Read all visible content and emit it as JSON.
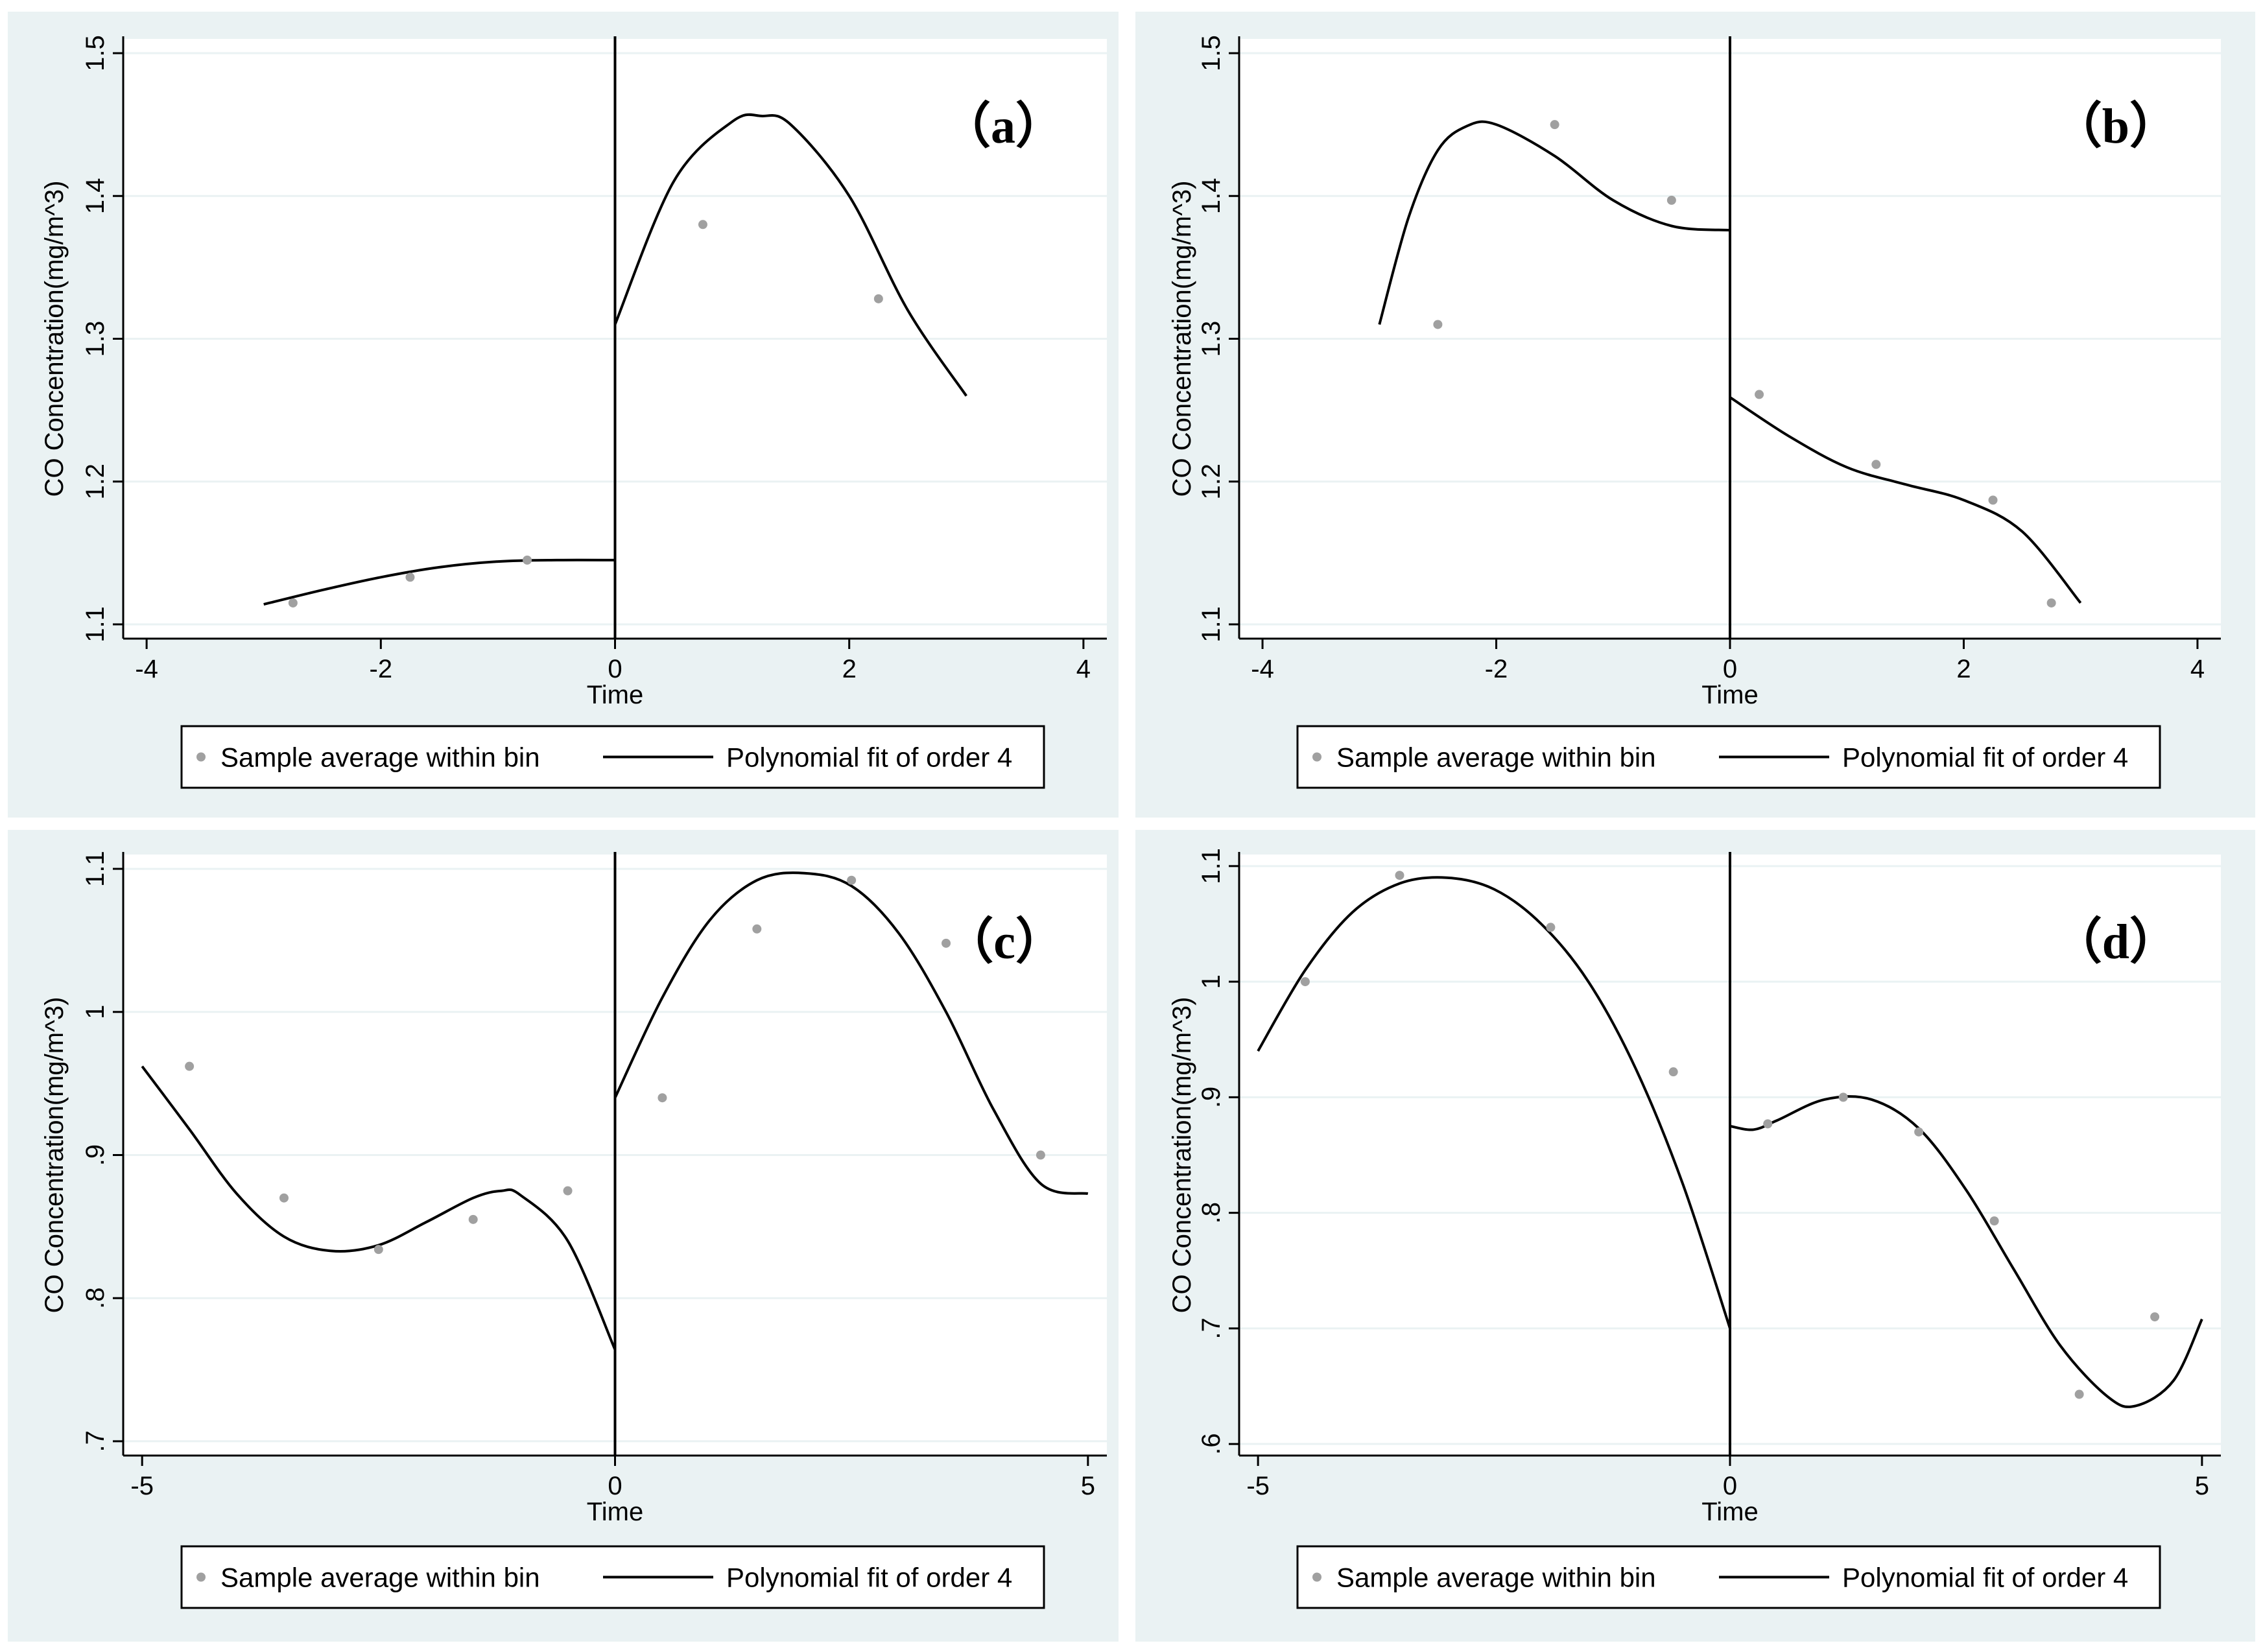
{
  "chart_data": [
    {
      "type": "scatter",
      "panel_label": "（a）",
      "xlabel": "Time",
      "ylabel": "CO Concentration(mg/m^3)",
      "xlim": [
        -4.2,
        4.2
      ],
      "ylim": [
        1.09,
        1.51
      ],
      "xticks": [
        -4,
        -2,
        0,
        2,
        4
      ],
      "xtick_labels": [
        "-4",
        "-2",
        "0",
        "2",
        "4"
      ],
      "yticks": [
        1.1,
        1.2,
        1.3,
        1.4,
        1.5
      ],
      "ytick_labels": [
        "1.1",
        "1.2",
        "1.3",
        "1.4",
        "1.5"
      ],
      "cutoff": 0,
      "points": {
        "x": [
          -2.75,
          -1.75,
          -0.75,
          0.75,
          2.25
        ],
        "y": [
          1.115,
          1.133,
          1.145,
          1.38,
          1.328
        ]
      },
      "fit_left": {
        "x": [
          -3,
          -2.5,
          -2,
          -1.5,
          -1,
          -0.5,
          0
        ],
        "y": [
          1.114,
          1.124,
          1.133,
          1.14,
          1.144,
          1.145,
          1.145
        ]
      },
      "fit_right": {
        "x": [
          0,
          0.5,
          1,
          1.25,
          1.5,
          2,
          2.5,
          3
        ],
        "y": [
          1.31,
          1.41,
          1.452,
          1.456,
          1.45,
          1.4,
          1.32,
          1.26
        ]
      },
      "legend": [
        "Sample average within bin",
        "Polynomial fit of order 4"
      ]
    },
    {
      "type": "scatter",
      "panel_label": "（b）",
      "xlabel": "Time",
      "ylabel": "CO Concentration(mg/m^3)",
      "xlim": [
        -4.2,
        4.2
      ],
      "ylim": [
        1.09,
        1.51
      ],
      "xticks": [
        -4,
        -2,
        0,
        2,
        4
      ],
      "xtick_labels": [
        "-4",
        "-2",
        "0",
        "2",
        "4"
      ],
      "yticks": [
        1.1,
        1.2,
        1.3,
        1.4,
        1.5
      ],
      "ytick_labels": [
        "1.1",
        "1.2",
        "1.3",
        "1.4",
        "1.5"
      ],
      "cutoff": 0,
      "points": {
        "x": [
          -2.5,
          -1.5,
          -0.5,
          0.25,
          1.25,
          2.25,
          2.75
        ],
        "y": [
          1.31,
          1.45,
          1.397,
          1.261,
          1.212,
          1.187,
          1.115
        ]
      },
      "fit_left": {
        "x": [
          -3,
          -2.75,
          -2.5,
          -2.25,
          -2,
          -1.5,
          -1,
          -0.5,
          0
        ],
        "y": [
          1.31,
          1.385,
          1.432,
          1.449,
          1.45,
          1.428,
          1.397,
          1.379,
          1.376
        ]
      },
      "fit_right": {
        "x": [
          0,
          0.5,
          1,
          1.5,
          2,
          2.5,
          3
        ],
        "y": [
          1.259,
          1.232,
          1.21,
          1.198,
          1.187,
          1.165,
          1.115
        ]
      },
      "legend": [
        "Sample average within bin",
        "Polynomial fit of order 4"
      ]
    },
    {
      "type": "scatter",
      "panel_label": "（c）",
      "xlabel": "Time",
      "ylabel": "CO Concentration(mg/m^3)",
      "xlim": [
        -5.2,
        5.2
      ],
      "ylim": [
        0.69,
        1.11
      ],
      "xticks": [
        -5,
        0,
        5
      ],
      "xtick_labels": [
        "-5",
        "0",
        "5"
      ],
      "yticks": [
        0.7,
        0.8,
        0.9,
        1.0,
        1.1
      ],
      "ytick_labels": [
        ".7",
        ".8",
        ".9",
        "1",
        "1.1"
      ],
      "cutoff": 0,
      "points": {
        "x": [
          -4.5,
          -3.5,
          -2.5,
          -1.5,
          -0.5,
          0.5,
          1.5,
          2.5,
          3.5,
          4.5
        ],
        "y": [
          0.962,
          0.87,
          0.834,
          0.855,
          0.875,
          0.94,
          1.058,
          1.092,
          1.048,
          0.9
        ]
      },
      "fit_left": {
        "x": [
          -5,
          -4.5,
          -4,
          -3.5,
          -3,
          -2.5,
          -2,
          -1.5,
          -1.2,
          -1,
          -0.5,
          0
        ],
        "y": [
          0.962,
          0.918,
          0.873,
          0.843,
          0.833,
          0.837,
          0.853,
          0.87,
          0.875,
          0.872,
          0.84,
          0.764
        ]
      },
      "fit_right": {
        "x": [
          0,
          0.5,
          1,
          1.5,
          2,
          2.5,
          3,
          3.5,
          4,
          4.5,
          5
        ],
        "y": [
          0.94,
          1.01,
          1.064,
          1.092,
          1.097,
          1.088,
          1.055,
          1.0,
          0.932,
          0.88,
          0.873
        ]
      },
      "legend": [
        "Sample average within bin",
        "Polynomial fit of order 4"
      ]
    },
    {
      "type": "scatter",
      "panel_label": "（d）",
      "xlabel": "Time",
      "ylabel": "CO Concentration(mg/m^3)",
      "xlim": [
        -5.2,
        5.2
      ],
      "ylim": [
        0.59,
        1.11
      ],
      "xticks": [
        -5,
        0,
        5
      ],
      "xtick_labels": [
        "-5",
        "0",
        "5"
      ],
      "yticks": [
        0.6,
        0.7,
        0.8,
        0.9,
        1.0,
        1.1
      ],
      "ytick_labels": [
        ".6",
        ".7",
        ".8",
        ".9",
        "1",
        "1.1"
      ],
      "cutoff": 0,
      "points": {
        "x": [
          -4.5,
          -3.5,
          -1.9,
          -0.6,
          0.4,
          1.2,
          2.0,
          2.8,
          3.7,
          4.5
        ],
        "y": [
          1.0,
          1.092,
          1.047,
          0.922,
          0.877,
          0.9,
          0.87,
          0.793,
          0.643,
          0.71
        ]
      },
      "fit_left": {
        "x": [
          -5,
          -4.5,
          -4,
          -3.5,
          -3,
          -2.5,
          -2,
          -1.5,
          -1,
          -0.5,
          0
        ],
        "y": [
          0.94,
          1.01,
          1.06,
          1.085,
          1.09,
          1.08,
          1.05,
          1.0,
          0.925,
          0.825,
          0.7
        ]
      },
      "fit_right": {
        "x": [
          0,
          0.25,
          0.5,
          1,
          1.5,
          2,
          2.5,
          3,
          3.5,
          4,
          4.3,
          4.7,
          5
        ],
        "y": [
          0.875,
          0.872,
          0.88,
          0.898,
          0.898,
          0.873,
          0.82,
          0.752,
          0.685,
          0.641,
          0.633,
          0.655,
          0.708
        ]
      },
      "legend": [
        "Sample average within bin",
        "Polynomial fit of order 4"
      ]
    }
  ]
}
